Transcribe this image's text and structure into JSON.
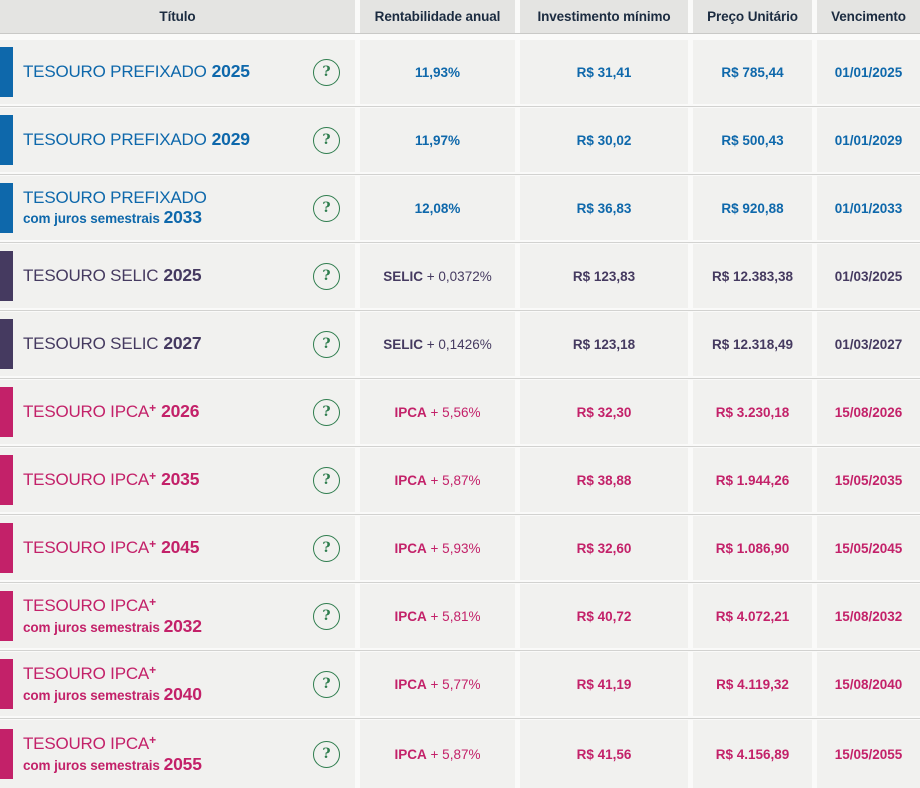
{
  "table": {
    "columns": [
      {
        "label": "Título"
      },
      {
        "label": "Rentabilidade anual"
      },
      {
        "label": "Investimento mínimo"
      },
      {
        "label": "Preço Unitário"
      },
      {
        "label": "Vencimento"
      }
    ],
    "help_icon": "?",
    "colors": {
      "prefixado": "#0e68ab",
      "selic": "#453a60",
      "ipca": "#c32169",
      "help_green": "#2f7d4e",
      "header_text": "#1b2b40",
      "header_bg": "#e4e4e2",
      "cell_bg": "#f1f1ef"
    },
    "rows": [
      {
        "type": "prefixado",
        "name": "TESOURO PREFIXADO",
        "name_sup": "",
        "year_inline": "2025",
        "subtitle": "",
        "year_sub": "",
        "rate_strong": "11,93%",
        "rate_rest": "",
        "min_investment": "R$ 31,41",
        "unit_price": "R$ 785,44",
        "maturity": "01/01/2025"
      },
      {
        "type": "prefixado",
        "name": "TESOURO PREFIXADO",
        "name_sup": "",
        "year_inline": "2029",
        "subtitle": "",
        "year_sub": "",
        "rate_strong": "11,97%",
        "rate_rest": "",
        "min_investment": "R$ 30,02",
        "unit_price": "R$ 500,43",
        "maturity": "01/01/2029"
      },
      {
        "type": "prefixado",
        "name": "TESOURO PREFIXADO",
        "name_sup": "",
        "year_inline": "",
        "subtitle": "com juros semestrais",
        "year_sub": "2033",
        "rate_strong": "12,08%",
        "rate_rest": "",
        "min_investment": "R$ 36,83",
        "unit_price": "R$ 920,88",
        "maturity": "01/01/2033"
      },
      {
        "type": "selic",
        "name": "TESOURO SELIC",
        "name_sup": "",
        "year_inline": "2025",
        "subtitle": "",
        "year_sub": "",
        "rate_strong": "SELIC",
        "rate_rest": " + 0,0372%",
        "min_investment": "R$ 123,83",
        "unit_price": "R$ 12.383,38",
        "maturity": "01/03/2025"
      },
      {
        "type": "selic",
        "name": "TESOURO SELIC",
        "name_sup": "",
        "year_inline": "2027",
        "subtitle": "",
        "year_sub": "",
        "rate_strong": "SELIC",
        "rate_rest": " + 0,1426%",
        "min_investment": "R$ 123,18",
        "unit_price": "R$ 12.318,49",
        "maturity": "01/03/2027"
      },
      {
        "type": "ipca",
        "name": "TESOURO IPCA",
        "name_sup": "+",
        "year_inline": "2026",
        "subtitle": "",
        "year_sub": "",
        "rate_strong": "IPCA",
        "rate_rest": " + 5,56%",
        "min_investment": "R$ 32,30",
        "unit_price": "R$ 3.230,18",
        "maturity": "15/08/2026"
      },
      {
        "type": "ipca",
        "name": "TESOURO IPCA",
        "name_sup": "+",
        "year_inline": "2035",
        "subtitle": "",
        "year_sub": "",
        "rate_strong": "IPCA",
        "rate_rest": " + 5,87%",
        "min_investment": "R$ 38,88",
        "unit_price": "R$ 1.944,26",
        "maturity": "15/05/2035"
      },
      {
        "type": "ipca",
        "name": "TESOURO IPCA",
        "name_sup": "+",
        "year_inline": "2045",
        "subtitle": "",
        "year_sub": "",
        "rate_strong": "IPCA",
        "rate_rest": " + 5,93%",
        "min_investment": "R$ 32,60",
        "unit_price": "R$ 1.086,90",
        "maturity": "15/05/2045"
      },
      {
        "type": "ipca",
        "name": "TESOURO IPCA",
        "name_sup": "+",
        "year_inline": "",
        "subtitle": "com juros semestrais",
        "year_sub": "2032",
        "rate_strong": "IPCA",
        "rate_rest": " + 5,81%",
        "min_investment": "R$ 40,72",
        "unit_price": "R$ 4.072,21",
        "maturity": "15/08/2032"
      },
      {
        "type": "ipca",
        "name": "TESOURO IPCA",
        "name_sup": "+",
        "year_inline": "",
        "subtitle": "com juros semestrais",
        "year_sub": "2040",
        "rate_strong": "IPCA",
        "rate_rest": " + 5,77%",
        "min_investment": "R$ 41,19",
        "unit_price": "R$ 4.119,32",
        "maturity": "15/08/2040"
      },
      {
        "type": "ipca",
        "name": "TESOURO IPCA",
        "name_sup": "+",
        "year_inline": "",
        "subtitle": "com juros semestrais",
        "year_sub": "2055",
        "rate_strong": "IPCA",
        "rate_rest": " + 5,87%",
        "min_investment": "R$ 41,56",
        "unit_price": "R$ 4.156,89",
        "maturity": "15/05/2055"
      }
    ]
  }
}
